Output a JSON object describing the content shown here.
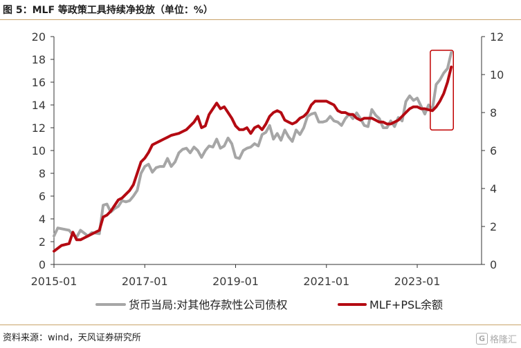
{
  "title": "图 5：MLF 等政策工具持续净投放（单位：%）",
  "source": "资料来源：wind，天风证券研究所",
  "watermark": {
    "logo": "G",
    "text": "格隆汇"
  },
  "chart_data": {
    "type": "line",
    "title": "图 5：MLF 等政策工具持续净投放（单位：%）",
    "xlabel": "",
    "ylabel_left": "",
    "ylabel_right": "",
    "x_ticks": [
      "2015-01",
      "2017-01",
      "2019-01",
      "2021-01",
      "2023-01"
    ],
    "x_range": [
      "2015-01",
      "2024-06"
    ],
    "y_left_range": [
      0,
      20
    ],
    "y_left_ticks": [
      "0",
      "2",
      "4",
      "6",
      "8",
      "10",
      "12",
      "14",
      "16",
      "18",
      "20"
    ],
    "y_right_range": [
      0,
      12
    ],
    "y_right_ticks": [
      "0",
      "2",
      "4",
      "6",
      "8",
      "10",
      "12"
    ],
    "grid": false,
    "legend_position": "bottom",
    "colors": {
      "gray_series": "#a6a6a6",
      "red_series": "#b40a12",
      "highlight_box": "#c00000"
    },
    "series": [
      {
        "name": "货币当局:对其他存款性公司债权",
        "axis": "left",
        "points": [
          [
            "2015-01",
            2.5
          ],
          [
            "2015-02",
            3.2
          ],
          [
            "2015-05",
            3.0
          ],
          [
            "2015-06",
            2.6
          ],
          [
            "2015-07",
            2.4
          ],
          [
            "2015-08",
            3.0
          ],
          [
            "2015-10",
            2.5
          ],
          [
            "2015-11",
            2.8
          ],
          [
            "2016-01",
            2.7
          ],
          [
            "2016-02",
            5.2
          ],
          [
            "2016-03",
            5.3
          ],
          [
            "2016-04",
            4.6
          ],
          [
            "2016-05",
            4.9
          ],
          [
            "2016-06",
            5.1
          ],
          [
            "2016-07",
            5.6
          ],
          [
            "2016-08",
            5.5
          ],
          [
            "2016-09",
            5.6
          ],
          [
            "2016-10",
            6.0
          ],
          [
            "2016-11",
            6.5
          ],
          [
            "2016-12",
            8.0
          ],
          [
            "2017-01",
            8.6
          ],
          [
            "2017-02",
            8.8
          ],
          [
            "2017-03",
            8.1
          ],
          [
            "2017-04",
            8.5
          ],
          [
            "2017-05",
            8.6
          ],
          [
            "2017-06",
            8.6
          ],
          [
            "2017-07",
            9.3
          ],
          [
            "2017-08",
            8.6
          ],
          [
            "2017-09",
            9.0
          ],
          [
            "2017-10",
            9.8
          ],
          [
            "2017-11",
            10.1
          ],
          [
            "2017-12",
            10.2
          ],
          [
            "2018-01",
            9.8
          ],
          [
            "2018-02",
            10.3
          ],
          [
            "2018-03",
            10.0
          ],
          [
            "2018-04",
            9.4
          ],
          [
            "2018-05",
            10.0
          ],
          [
            "2018-06",
            10.4
          ],
          [
            "2018-07",
            10.3
          ],
          [
            "2018-08",
            11.0
          ],
          [
            "2018-09",
            10.2
          ],
          [
            "2018-10",
            10.4
          ],
          [
            "2018-11",
            11.1
          ],
          [
            "2018-12",
            10.6
          ],
          [
            "2019-01",
            9.4
          ],
          [
            "2019-02",
            9.3
          ],
          [
            "2019-03",
            10.0
          ],
          [
            "2019-04",
            10.2
          ],
          [
            "2019-05",
            10.3
          ],
          [
            "2019-06",
            10.6
          ],
          [
            "2019-07",
            10.4
          ],
          [
            "2019-08",
            11.4
          ],
          [
            "2019-09",
            11.6
          ],
          [
            "2019-10",
            12.2
          ],
          [
            "2019-11",
            11.0
          ],
          [
            "2019-12",
            11.5
          ],
          [
            "2020-01",
            10.9
          ],
          [
            "2020-02",
            11.8
          ],
          [
            "2020-03",
            11.2
          ],
          [
            "2020-04",
            10.8
          ],
          [
            "2020-05",
            11.8
          ],
          [
            "2020-06",
            11.4
          ],
          [
            "2020-07",
            12.0
          ],
          [
            "2020-08",
            13.0
          ],
          [
            "2020-09",
            13.2
          ],
          [
            "2020-10",
            13.3
          ],
          [
            "2020-11",
            12.5
          ],
          [
            "2020-12",
            12.5
          ],
          [
            "2021-01",
            12.6
          ],
          [
            "2021-02",
            13.0
          ],
          [
            "2021-03",
            12.6
          ],
          [
            "2021-04",
            12.5
          ],
          [
            "2021-05",
            12.2
          ],
          [
            "2021-06",
            12.8
          ],
          [
            "2021-07",
            13.2
          ],
          [
            "2021-08",
            12.8
          ],
          [
            "2021-09",
            13.3
          ],
          [
            "2021-10",
            12.8
          ],
          [
            "2021-11",
            12.2
          ],
          [
            "2021-12",
            12.1
          ],
          [
            "2022-01",
            13.6
          ],
          [
            "2022-02",
            13.1
          ],
          [
            "2022-03",
            12.8
          ],
          [
            "2022-04",
            12.0
          ],
          [
            "2022-05",
            12.0
          ],
          [
            "2022-06",
            12.6
          ],
          [
            "2022-07",
            12.1
          ],
          [
            "2022-08",
            12.9
          ],
          [
            "2022-09",
            12.6
          ],
          [
            "2022-10",
            14.3
          ],
          [
            "2022-11",
            14.8
          ],
          [
            "2022-12",
            14.4
          ],
          [
            "2023-01",
            14.6
          ],
          [
            "2023-02",
            13.9
          ],
          [
            "2023-03",
            13.2
          ],
          [
            "2023-04",
            14.0
          ],
          [
            "2023-05",
            13.6
          ],
          [
            "2023-06",
            15.8
          ],
          [
            "2023-07",
            16.2
          ],
          [
            "2023-08",
            16.8
          ],
          [
            "2023-09",
            17.2
          ],
          [
            "2023-10",
            18.6
          ]
        ]
      },
      {
        "name": "MLF+PSL余额",
        "axis": "right",
        "points": [
          [
            "2015-01",
            0.7
          ],
          [
            "2015-03",
            1.0
          ],
          [
            "2015-05",
            1.1
          ],
          [
            "2015-06",
            1.7
          ],
          [
            "2015-07",
            1.3
          ],
          [
            "2015-08",
            1.3
          ],
          [
            "2015-09",
            1.4
          ],
          [
            "2015-11",
            1.6
          ],
          [
            "2016-01",
            1.8
          ],
          [
            "2016-02",
            2.5
          ],
          [
            "2016-03",
            2.6
          ],
          [
            "2016-04",
            2.8
          ],
          [
            "2016-05",
            3.1
          ],
          [
            "2016-06",
            3.4
          ],
          [
            "2016-07",
            3.5
          ],
          [
            "2016-08",
            3.7
          ],
          [
            "2016-09",
            3.9
          ],
          [
            "2016-10",
            4.2
          ],
          [
            "2016-11",
            4.8
          ],
          [
            "2016-12",
            5.4
          ],
          [
            "2017-01",
            5.6
          ],
          [
            "2017-02",
            5.9
          ],
          [
            "2017-03",
            6.3
          ],
          [
            "2017-04",
            6.4
          ],
          [
            "2017-05",
            6.5
          ],
          [
            "2017-06",
            6.6
          ],
          [
            "2017-07",
            6.7
          ],
          [
            "2017-08",
            6.8
          ],
          [
            "2017-09",
            6.85
          ],
          [
            "2017-10",
            6.9
          ],
          [
            "2017-11",
            7.0
          ],
          [
            "2017-12",
            7.1
          ],
          [
            "2018-01",
            7.3
          ],
          [
            "2018-02",
            7.5
          ],
          [
            "2018-03",
            7.8
          ],
          [
            "2018-04",
            7.2
          ],
          [
            "2018-05",
            7.3
          ],
          [
            "2018-06",
            7.9
          ],
          [
            "2018-07",
            8.2
          ],
          [
            "2018-08",
            8.5
          ],
          [
            "2018-09",
            8.2
          ],
          [
            "2018-10",
            8.3
          ],
          [
            "2018-11",
            8.0
          ],
          [
            "2018-12",
            7.7
          ],
          [
            "2019-01",
            7.3
          ],
          [
            "2019-02",
            7.1
          ],
          [
            "2019-03",
            7.1
          ],
          [
            "2019-04",
            7.2
          ],
          [
            "2019-05",
            6.9
          ],
          [
            "2019-06",
            7.2
          ],
          [
            "2019-07",
            7.3
          ],
          [
            "2019-08",
            7.1
          ],
          [
            "2019-09",
            7.4
          ],
          [
            "2019-10",
            7.8
          ],
          [
            "2019-11",
            8.0
          ],
          [
            "2019-12",
            8.1
          ],
          [
            "2020-01",
            8.0
          ],
          [
            "2020-02",
            7.6
          ],
          [
            "2020-03",
            7.5
          ],
          [
            "2020-04",
            7.4
          ],
          [
            "2020-05",
            7.5
          ],
          [
            "2020-06",
            7.7
          ],
          [
            "2020-07",
            7.8
          ],
          [
            "2020-08",
            8.0
          ],
          [
            "2020-09",
            8.4
          ],
          [
            "2020-10",
            8.6
          ],
          [
            "2020-11",
            8.6
          ],
          [
            "2020-12",
            8.6
          ],
          [
            "2021-01",
            8.6
          ],
          [
            "2021-02",
            8.5
          ],
          [
            "2021-03",
            8.4
          ],
          [
            "2021-04",
            8.1
          ],
          [
            "2021-05",
            8.0
          ],
          [
            "2021-06",
            8.0
          ],
          [
            "2021-07",
            7.9
          ],
          [
            "2021-08",
            7.9
          ],
          [
            "2021-09",
            7.7
          ],
          [
            "2021-10",
            7.6
          ],
          [
            "2021-11",
            7.7
          ],
          [
            "2021-12",
            7.7
          ],
          [
            "2022-01",
            7.7
          ],
          [
            "2022-02",
            7.6
          ],
          [
            "2022-03",
            7.5
          ],
          [
            "2022-04",
            7.5
          ],
          [
            "2022-05",
            7.4
          ],
          [
            "2022-06",
            7.4
          ],
          [
            "2022-07",
            7.5
          ],
          [
            "2022-08",
            7.6
          ],
          [
            "2022-09",
            7.8
          ],
          [
            "2022-10",
            8.0
          ],
          [
            "2022-11",
            8.2
          ],
          [
            "2022-12",
            8.3
          ],
          [
            "2023-01",
            8.3
          ],
          [
            "2023-02",
            8.2
          ],
          [
            "2023-03",
            8.2
          ],
          [
            "2023-04",
            8.15
          ],
          [
            "2023-05",
            8.1
          ],
          [
            "2023-06",
            8.3
          ],
          [
            "2023-07",
            8.6
          ],
          [
            "2023-08",
            9.0
          ],
          [
            "2023-09",
            9.6
          ],
          [
            "2023-10",
            10.4
          ]
        ]
      }
    ],
    "highlight": {
      "x_start": "2023-05",
      "x_end": "2023-10",
      "y_left_min": 11.8,
      "y_left_max": 18.8
    }
  }
}
